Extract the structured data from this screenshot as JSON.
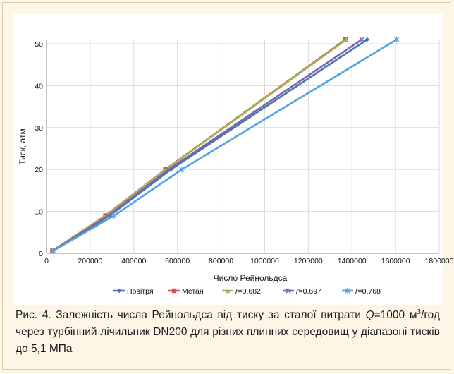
{
  "caption": {
    "part1": "Рис. 4. Залежність числа Рейнольдса від тиску за сталої витрати ",
    "q_symbol": "Q",
    "part2": "=1000 м",
    "part2_sup": "3",
    "part3": "/год через турбінний лічильник DN200 для різних плинних середовищ у діапазоні тисків до 5,1 МПа"
  },
  "chart_data": {
    "type": "line",
    "xlabel": "Число Рейнольдса",
    "ylabel": "Тиск, атм",
    "xlim": [
      0,
      1800000
    ],
    "ylim": [
      0,
      51
    ],
    "x_ticks": [
      0,
      200000,
      400000,
      600000,
      800000,
      1000000,
      1200000,
      1400000,
      1600000,
      1800000
    ],
    "x_tick_labels": [
      "0",
      "200000",
      "400000",
      "600000",
      "800000",
      "1000000",
      "1200000",
      "1400000",
      "1600000",
      "1800000"
    ],
    "y_ticks": [
      0,
      10,
      20,
      30,
      40,
      50
    ],
    "y_tick_labels": [
      "0",
      "10",
      "20",
      "30",
      "40",
      "50"
    ],
    "grid": true,
    "legend_position": "bottom",
    "series": [
      {
        "name": "Повітря",
        "legend_label": "Повітря",
        "color": "#4472c4",
        "marker": "diamond",
        "x": [
          30000,
          290000,
          570000,
          1470000
        ],
        "y": [
          0.6,
          9,
          20,
          51
        ]
      },
      {
        "name": "Метан",
        "legend_label": "Метан",
        "color": "#d9534f",
        "marker": "square",
        "x": [
          27000,
          270000,
          545000,
          1370000
        ],
        "y": [
          0.6,
          9,
          20,
          51
        ]
      },
      {
        "name": "r=0,682",
        "legend_italic": "r",
        "legend_suffix": "=0,682",
        "color": "#9bbb59",
        "marker": "triangle",
        "x": [
          28000,
          272000,
          548000,
          1375000
        ],
        "y": [
          0.6,
          9,
          20,
          51
        ]
      },
      {
        "name": "r=0,697",
        "legend_italic": "r",
        "legend_suffix": "=0,697",
        "color": "#8064a2",
        "marker": "x",
        "x": [
          29000,
          283000,
          560000,
          1445000
        ],
        "y": [
          0.6,
          9,
          20,
          51
        ]
      },
      {
        "name": "r=0,768",
        "legend_italic": "r",
        "legend_suffix": "=0,768",
        "color": "#4fa3e0",
        "marker": "star",
        "x": [
          31000,
          310000,
          620000,
          1605000
        ],
        "y": [
          0.6,
          9,
          20,
          51
        ]
      }
    ]
  }
}
